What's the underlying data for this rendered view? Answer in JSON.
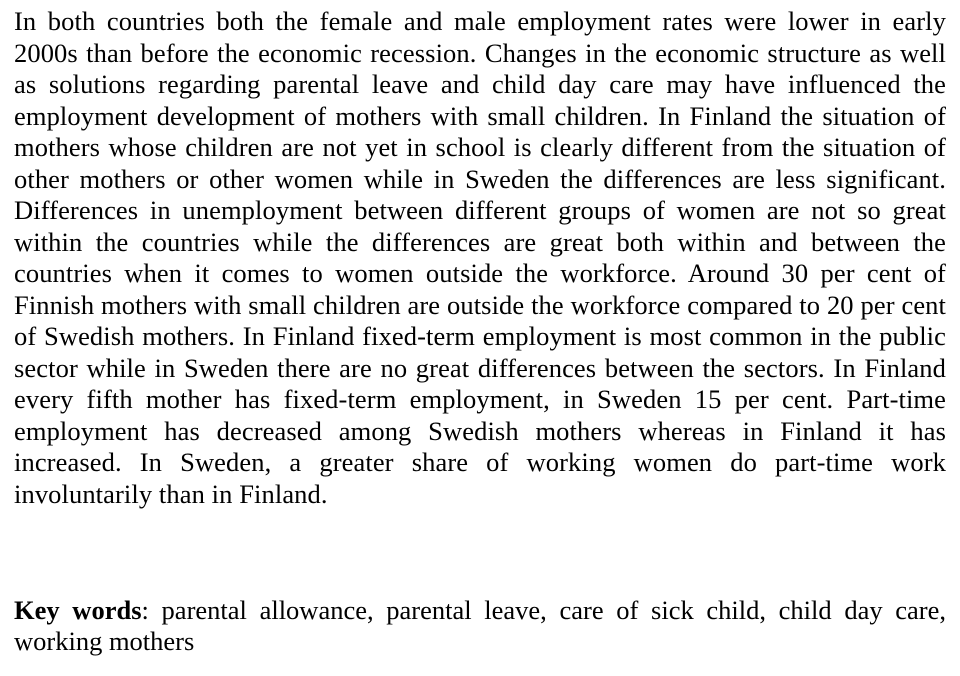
{
  "document": {
    "body_text": "In both countries both the female and male employment rates were lower in early 2000s than before the economic recession. Changes in the economic structure as well as solutions regarding parental leave and child day care may have influenced the employment development of mothers with small children. In Finland the situation of mothers whose children are not yet in school is clearly different from the situation of other mothers or other women while in Sweden the differences are less significant. Differences in unemployment between different groups of women are not so great within the countries while the differences are great both within and between the countries when it comes to women outside the workforce. Around 30 per cent of Finnish mothers with small children are outside the workforce compared to 20 per cent of Swedish mothers. In Finland fixed-term employment is most common in the public sector while in Sweden there are no great differences between the sectors. In Finland every fifth mother has fixed-term employment, in Sweden 15 per cent. Part-time employment has decreased among Swedish mothers whereas in Finland it has increased. In Sweden, a greater share of working women do part-time work involuntarily than in Finland.",
    "keywords_label": "Key words",
    "keywords_value": ": parental allowance, parental leave, care of sick child, child day care, working mothers",
    "font_family": "Times New Roman",
    "font_size_pt": 20,
    "text_color": "#000000",
    "background_color": "#ffffff"
  }
}
